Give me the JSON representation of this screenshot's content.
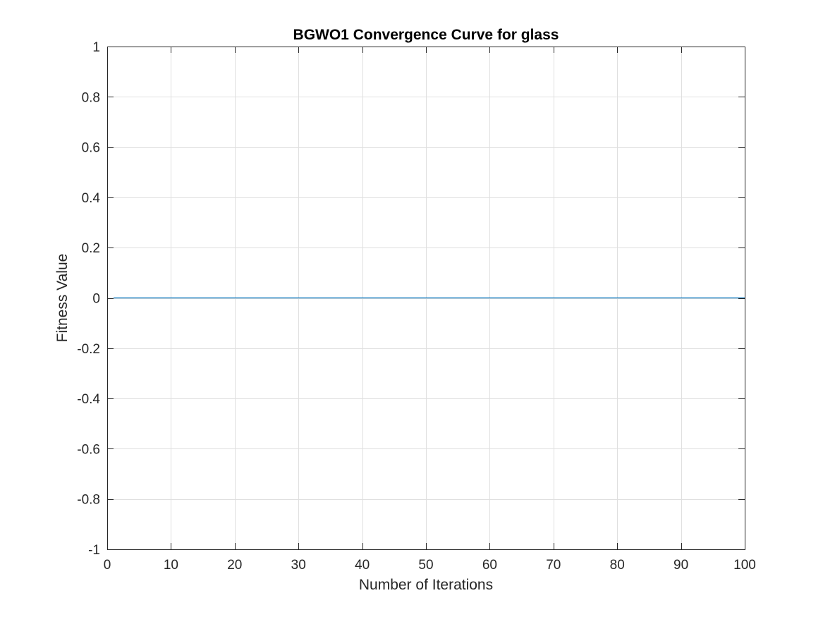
{
  "chart_data": {
    "type": "line",
    "title": "BGWO1 Convergence Curve for glass",
    "xlabel": "Number of Iterations",
    "ylabel": "Fitness Value",
    "xlim": [
      0,
      100
    ],
    "ylim": [
      -1,
      1
    ],
    "x_ticks": [
      0,
      10,
      20,
      30,
      40,
      50,
      60,
      70,
      80,
      90,
      100
    ],
    "x_tick_labels": [
      "0",
      "10",
      "20",
      "30",
      "40",
      "50",
      "60",
      "70",
      "80",
      "90",
      "100"
    ],
    "y_ticks": [
      -1,
      -0.8,
      -0.6,
      -0.4,
      -0.2,
      0,
      0.2,
      0.4,
      0.6,
      0.8,
      1
    ],
    "y_tick_labels": [
      "-1",
      "-0.8",
      "-0.6",
      "-0.4",
      "-0.2",
      "0",
      "0.2",
      "0.4",
      "0.6",
      "0.8",
      "1"
    ],
    "grid": true,
    "series": [
      {
        "color": "#0072BD",
        "x": [
          1,
          100
        ],
        "y": [
          0,
          0
        ]
      }
    ]
  }
}
